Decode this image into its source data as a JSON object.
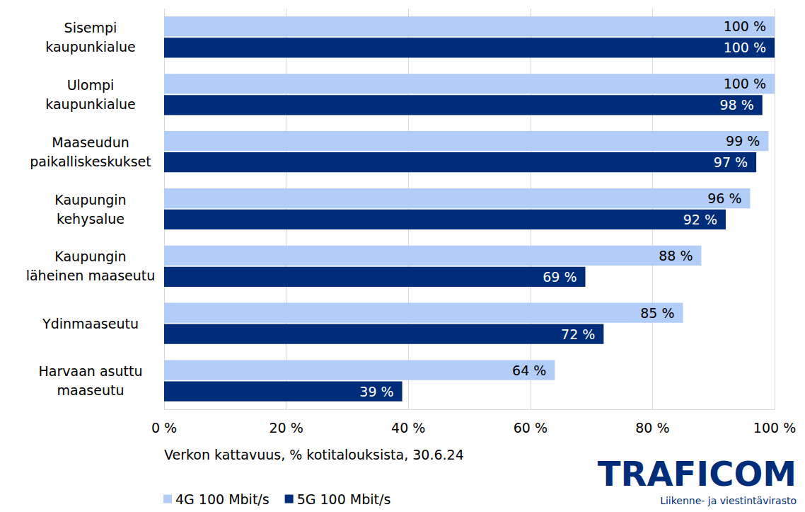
{
  "chart_data": {
    "type": "bar",
    "orientation": "horizontal",
    "x_label": "Verkon kattavuus, % kotitalouksista, 30.6.24",
    "annotations": [
      "TRAFICOM",
      "Liikenne- ja viestintävirasto"
    ],
    "categories": [
      "Sisempi\nkaupunkialue",
      "Ulompi\nkaupunkialue",
      "Maaseudun\npaikalliskeskukset",
      "Kaupungin\nkehysalue",
      "Kaupungin\nläheinen maaseutu",
      "Ydinmaaseutu",
      "Harvaan asuttu\nmaaseutu"
    ],
    "series": [
      {
        "name": "4G 100 Mbit/s",
        "color": "#b3cdf9",
        "values": [
          100,
          100,
          99,
          96,
          88,
          85,
          64
        ],
        "value_labels": [
          "100 %",
          "100 %",
          "99 %",
          "96 %",
          "88 %",
          "85 %",
          "64 %"
        ]
      },
      {
        "name": "5G 100 Mbit/s",
        "color": "#002d7a",
        "values": [
          100,
          98,
          97,
          92,
          69,
          72,
          39
        ],
        "value_labels": [
          "100 %",
          "98 %",
          "97 %",
          "92 %",
          "69 %",
          "72 %",
          "39 %"
        ]
      }
    ],
    "xlim": [
      0,
      100
    ],
    "xticks": [
      {
        "value": 0,
        "label": "0 %"
      },
      {
        "value": 20,
        "label": "20 %"
      },
      {
        "value": 40,
        "label": "40 %"
      },
      {
        "value": 60,
        "label": "60 %"
      },
      {
        "value": 80,
        "label": "80 %"
      },
      {
        "value": 100,
        "label": "100 %"
      }
    ],
    "grid": true,
    "legend": "bottom-left",
    "data_labels": true
  }
}
